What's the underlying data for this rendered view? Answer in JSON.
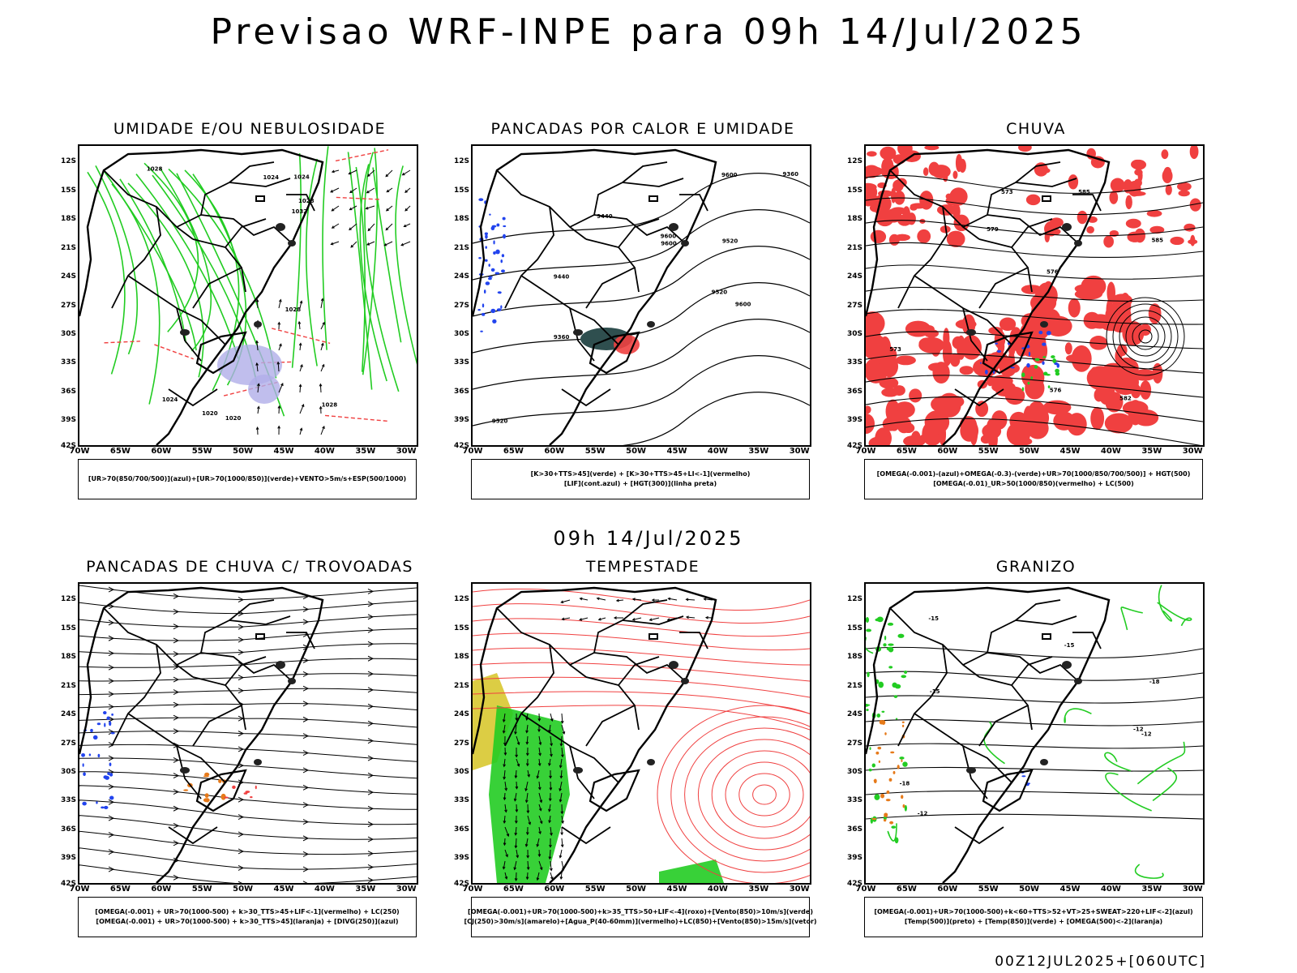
{
  "main_title": "Previsao WRF-INPE  para 09h 14/Jul/2025",
  "center_time": "09h 14/Jul/2025",
  "footer_run": "00Z12JUL2025+[060UTC]",
  "lat_labels": [
    "12S",
    "15S",
    "18S",
    "21S",
    "24S",
    "27S",
    "30S",
    "33S",
    "36S",
    "39S",
    "42S"
  ],
  "lon_labels": [
    "70W",
    "65W",
    "60W",
    "55W",
    "50W",
    "45W",
    "40W",
    "35W",
    "30W"
  ],
  "colors": {
    "green": "#22cc22",
    "red": "#f04040",
    "blue": "#2244ee",
    "orange": "#e67a1a",
    "yellow": "#d8c830",
    "lavender": "#b0aee8"
  },
  "panels": [
    {
      "title": "UMIDADE E/OU NEBULOSIDADE",
      "legend": [
        "[UR>70(850/700/500)](azul)+[UR>70(1000/850)](verde)+VENTO>5m/s+ESP(500/1000)"
      ],
      "contour_labels": [
        "1024",
        "1020",
        "1028",
        "1024",
        "1028",
        "1032",
        "1028",
        "1020",
        "1024",
        "1028"
      ]
    },
    {
      "title": "PANCADAS POR CALOR E UMIDADE",
      "legend": [
        "[K>30+TTS>45](verde) + [K>30+TTS>45+LI<-1](vermelho)",
        "[LIF](cont.azul) + [HGT(300)](linha preta)"
      ],
      "contour_labels": [
        "9600",
        "9520",
        "9600",
        "9600",
        "9520",
        "9440",
        "9520",
        "9440",
        "9360",
        "9360",
        "9600"
      ]
    },
    {
      "title": "CHUVA",
      "legend": [
        "[OMEGA(-0.001)-(azul)+OMEGA(-0.3)-(verde)+UR>70(1000/850/700/500)] + HGT(500)",
        "[OMEGA(-0.01)_UR>50(1000/850)(vermelho) + LC(500)"
      ],
      "contour_labels": [
        "585",
        "582",
        "579",
        "576",
        "573",
        "573",
        "585",
        "576"
      ]
    },
    {
      "title": "PANCADAS DE CHUVA C/ TROVOADAS",
      "legend": [
        "[OMEGA(-0.001) + UR>70(1000-500) + k>30_TTS>45+LIF<-1](vermelho) + LC(250)",
        "[OMEGA(-0.001) + UR>70(1000-500) + k>30_TTS>45](laranja) + [DIVG(250)](azul)"
      ],
      "contour_labels": []
    },
    {
      "title": "TEMPESTADE",
      "legend": [
        "[OMEGA(-0.001)+UR>70(1000-500)+k>35_TTS>50+LIF<-4](roxo)+[Vento(850)>10m/s](verde)",
        "[CJ(250)>30m/s](amarelo)+[Agua_P(40-60mm)](vermelho)+LC(850)+[Vento(850)>15m/s](vetor)"
      ],
      "contour_labels": []
    },
    {
      "title": "GRANIZO",
      "legend": [
        "[OMEGA(-0.001)+UR>70(1000-500)+k<60+TTS>52+VT>25+SWEAT>220+LIF<-2](azul)",
        "[Temp(500)](preto) + [Temp(850)](verde) + [OMEGA(500)<-2](laranja)"
      ],
      "contour_labels": [
        "-12",
        "-12",
        "-15",
        "-15",
        "-18",
        "-18",
        "-12",
        "-15"
      ]
    }
  ]
}
